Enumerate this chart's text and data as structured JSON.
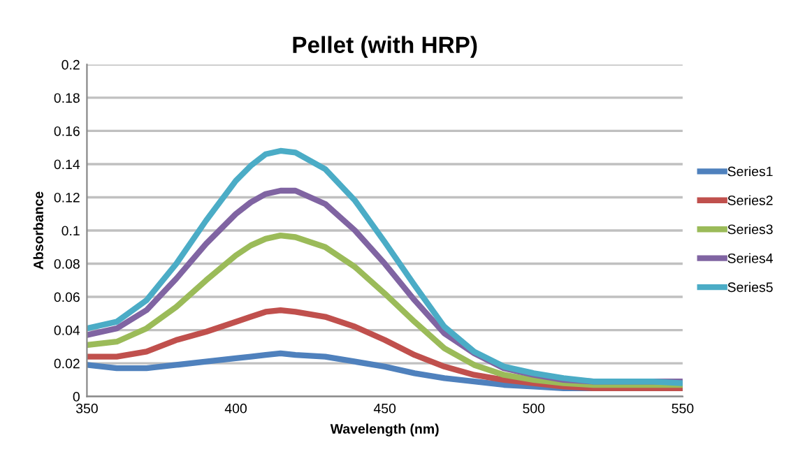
{
  "chart_data": {
    "type": "line",
    "title": "Pellet (with HRP)",
    "xlabel": "Wavelength (nm)",
    "ylabel": "Absorbance",
    "x": [
      350,
      360,
      370,
      380,
      390,
      400,
      405,
      410,
      415,
      420,
      430,
      440,
      450,
      460,
      470,
      480,
      490,
      500,
      510,
      520,
      530,
      540,
      550
    ],
    "series": [
      {
        "name": "Series1",
        "color": "#4f81bd",
        "values": [
          0.019,
          0.017,
          0.017,
          0.019,
          0.021,
          0.023,
          0.024,
          0.025,
          0.026,
          0.025,
          0.024,
          0.021,
          0.018,
          0.014,
          0.011,
          0.009,
          0.007,
          0.006,
          0.005,
          0.005,
          0.005,
          0.005,
          0.005
        ]
      },
      {
        "name": "Series2",
        "color": "#c0504d",
        "values": [
          0.024,
          0.024,
          0.027,
          0.034,
          0.039,
          0.045,
          0.048,
          0.051,
          0.052,
          0.051,
          0.048,
          0.042,
          0.034,
          0.025,
          0.018,
          0.013,
          0.01,
          0.008,
          0.006,
          0.005,
          0.005,
          0.005,
          0.005
        ]
      },
      {
        "name": "Series3",
        "color": "#9bbb59",
        "values": [
          0.031,
          0.033,
          0.041,
          0.054,
          0.07,
          0.085,
          0.091,
          0.095,
          0.097,
          0.096,
          0.09,
          0.078,
          0.062,
          0.045,
          0.029,
          0.019,
          0.013,
          0.01,
          0.008,
          0.007,
          0.007,
          0.007,
          0.007
        ]
      },
      {
        "name": "Series4",
        "color": "#8064a2",
        "values": [
          0.037,
          0.041,
          0.052,
          0.071,
          0.092,
          0.11,
          0.117,
          0.122,
          0.124,
          0.124,
          0.116,
          0.1,
          0.08,
          0.058,
          0.038,
          0.026,
          0.017,
          0.013,
          0.01,
          0.009,
          0.009,
          0.009,
          0.009
        ]
      },
      {
        "name": "Series5",
        "color": "#4bacc6",
        "values": [
          0.041,
          0.045,
          0.058,
          0.08,
          0.106,
          0.13,
          0.139,
          0.146,
          0.148,
          0.147,
          0.137,
          0.118,
          0.093,
          0.067,
          0.042,
          0.027,
          0.018,
          0.014,
          0.011,
          0.009,
          0.009,
          0.009,
          0.008
        ]
      }
    ],
    "xlim": [
      350,
      550
    ],
    "xticks": [
      350,
      400,
      450,
      500,
      550
    ],
    "ylim": [
      0,
      0.2
    ],
    "yticks": [
      0,
      0.02,
      0.04,
      0.06,
      0.08,
      0.1,
      0.12,
      0.14,
      0.16,
      0.18,
      0.2
    ],
    "grid": "y",
    "legend": "right",
    "marker": "none",
    "line_style": "solid"
  }
}
